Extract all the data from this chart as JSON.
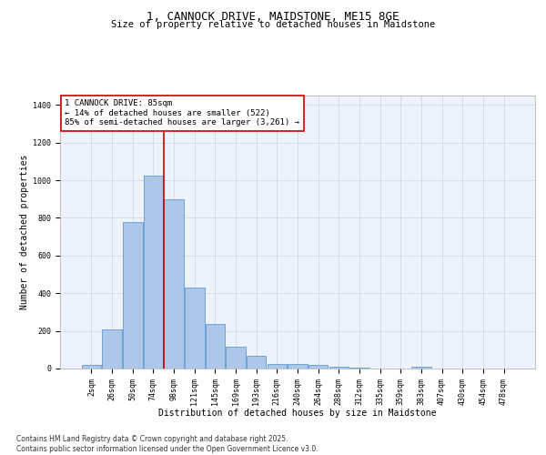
{
  "title": "1, CANNOCK DRIVE, MAIDSTONE, ME15 8GE",
  "subtitle": "Size of property relative to detached houses in Maidstone",
  "xlabel": "Distribution of detached houses by size in Maidstone",
  "ylabel": "Number of detached properties",
  "bar_labels": [
    "2sqm",
    "26sqm",
    "50sqm",
    "74sqm",
    "98sqm",
    "121sqm",
    "145sqm",
    "169sqm",
    "193sqm",
    "216sqm",
    "240sqm",
    "264sqm",
    "288sqm",
    "312sqm",
    "335sqm",
    "359sqm",
    "383sqm",
    "407sqm",
    "430sqm",
    "454sqm",
    "478sqm"
  ],
  "bar_values": [
    20,
    210,
    780,
    1025,
    900,
    430,
    235,
    115,
    70,
    25,
    25,
    18,
    12,
    5,
    0,
    0,
    12,
    0,
    0,
    0,
    0
  ],
  "bar_color": "#aec6e8",
  "bar_edge_color": "#5b9bd5",
  "vline_x": 3.5,
  "vline_color": "#cc0000",
  "annotation_text": "1 CANNOCK DRIVE: 85sqm\n← 14% of detached houses are smaller (522)\n85% of semi-detached houses are larger (3,261) →",
  "annotation_box_color": "#ffffff",
  "annotation_box_edge": "#cc0000",
  "ylim": [
    0,
    1450
  ],
  "yticks": [
    0,
    200,
    400,
    600,
    800,
    1000,
    1200,
    1400
  ],
  "grid_color": "#d0d8e8",
  "background_color": "#eef2fb",
  "footer_text": "Contains HM Land Registry data © Crown copyright and database right 2025.\nContains public sector information licensed under the Open Government Licence v3.0.",
  "title_fontsize": 9,
  "subtitle_fontsize": 7.5,
  "axis_label_fontsize": 7,
  "tick_fontsize": 6,
  "annotation_fontsize": 6.5,
  "footer_fontsize": 5.5
}
